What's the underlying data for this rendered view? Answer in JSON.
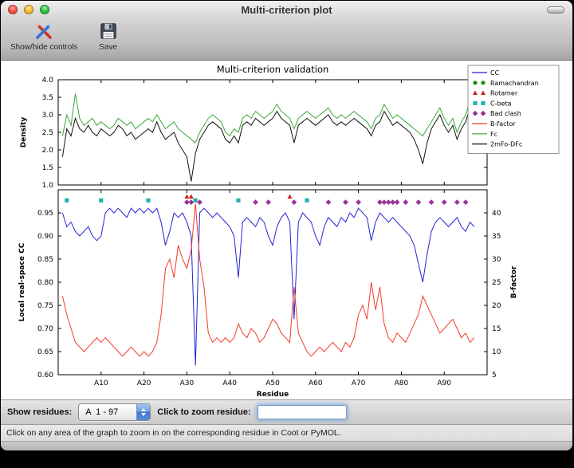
{
  "window": {
    "title": "Multi-criterion plot"
  },
  "toolbar": {
    "buttons": [
      {
        "label": "Show/hide controls",
        "icon": "tools-icon"
      },
      {
        "label": "Save",
        "icon": "save-icon"
      }
    ]
  },
  "controls": {
    "show_residues_label": "Show residues:",
    "residue_range_value": "A  1 - 97",
    "zoom_label": "Click to zoom residue:",
    "zoom_value": ""
  },
  "status_text": "Click on any area of the graph to zoom in on the corresponding residue in Coot or PyMOL.",
  "chart_data": {
    "type": "line",
    "title": "Multi-criterion validation",
    "xlabel": "Residue",
    "x_range": [
      0,
      100
    ],
    "residue_start": 1,
    "x_ticks": {
      "values": [
        10,
        20,
        30,
        40,
        50,
        60,
        70,
        80,
        90
      ],
      "labels": [
        "A10",
        "A20",
        "A30",
        "A40",
        "A50",
        "A60",
        "A70",
        "A80",
        "A90"
      ]
    },
    "top_plot": {
      "ylabel": "Density",
      "ylim": [
        1.0,
        4.0
      ],
      "yticks": [
        1.0,
        1.5,
        2.0,
        2.5,
        3.0,
        3.5,
        4.0
      ],
      "series": [
        {
          "name": "Fc",
          "color": "#3aa63a",
          "values": [
            2.4,
            3.0,
            2.7,
            3.6,
            2.9,
            2.7,
            2.8,
            2.9,
            2.7,
            2.8,
            2.7,
            2.6,
            2.7,
            2.9,
            2.8,
            2.7,
            2.8,
            2.6,
            2.7,
            2.8,
            2.9,
            2.8,
            3.0,
            2.8,
            2.6,
            2.7,
            2.8,
            2.6,
            2.5,
            2.4,
            2.3,
            2.2,
            2.5,
            2.7,
            2.9,
            3.0,
            2.9,
            2.8,
            2.5,
            2.4,
            2.6,
            2.5,
            2.9,
            3.0,
            2.9,
            3.1,
            3.0,
            2.9,
            3.0,
            3.1,
            3.3,
            3.1,
            3.0,
            2.9,
            2.6,
            2.9,
            3.0,
            3.1,
            3.0,
            2.9,
            3.0,
            3.1,
            3.2,
            3.0,
            2.9,
            3.0,
            2.9,
            3.0,
            3.1,
            3.0,
            2.9,
            2.8,
            2.6,
            2.9,
            3.0,
            3.3,
            3.1,
            2.9,
            3.0,
            2.9,
            2.8,
            2.7,
            2.6,
            2.5,
            2.4,
            2.6,
            2.8,
            3.0,
            3.2,
            2.9,
            2.7,
            2.9,
            2.5,
            2.8,
            3.0,
            3.4,
            3.2
          ]
        },
        {
          "name": "2mFo-DFc",
          "color": "#111111",
          "values": [
            1.8,
            2.6,
            2.4,
            2.9,
            2.6,
            2.5,
            2.7,
            2.5,
            2.4,
            2.6,
            2.5,
            2.4,
            2.5,
            2.7,
            2.6,
            2.4,
            2.5,
            2.3,
            2.4,
            2.5,
            2.6,
            2.5,
            2.8,
            2.5,
            2.3,
            2.4,
            2.5,
            2.2,
            2.0,
            1.8,
            1.1,
            1.9,
            2.3,
            2.5,
            2.7,
            2.8,
            2.7,
            2.6,
            2.3,
            2.2,
            2.4,
            2.2,
            2.7,
            2.8,
            2.7,
            2.9,
            2.8,
            2.7,
            2.8,
            2.9,
            3.1,
            2.9,
            2.8,
            2.7,
            2.2,
            2.7,
            2.8,
            2.9,
            2.8,
            2.7,
            2.8,
            2.9,
            3.0,
            2.8,
            2.7,
            2.8,
            2.7,
            2.8,
            2.9,
            2.8,
            2.7,
            2.6,
            2.4,
            2.7,
            2.8,
            3.1,
            2.9,
            2.7,
            2.8,
            2.7,
            2.6,
            2.5,
            2.3,
            2.0,
            1.6,
            2.2,
            2.6,
            2.8,
            3.0,
            2.7,
            2.5,
            2.7,
            2.3,
            2.6,
            2.8,
            3.2,
            3.0
          ]
        }
      ]
    },
    "bottom_plot": {
      "ylabel_left": "Local real-space CC",
      "ylabel_right": "B-factor",
      "ylim_left": [
        0.6,
        1.0
      ],
      "yticks_left": [
        0.6,
        0.65,
        0.7,
        0.75,
        0.8,
        0.85,
        0.9,
        0.95
      ],
      "ylim_right": [
        5,
        45
      ],
      "yticks_right": [
        5,
        10,
        15,
        20,
        25,
        30,
        35,
        40
      ],
      "series": [
        {
          "name": "CC",
          "axis": "left",
          "color": "#2323d6",
          "values": [
            0.95,
            0.92,
            0.93,
            0.91,
            0.9,
            0.91,
            0.92,
            0.9,
            0.89,
            0.9,
            0.95,
            0.96,
            0.95,
            0.96,
            0.95,
            0.94,
            0.96,
            0.95,
            0.96,
            0.95,
            0.96,
            0.95,
            0.96,
            0.93,
            0.88,
            0.91,
            0.95,
            0.94,
            0.95,
            0.93,
            0.9,
            0.62,
            0.95,
            0.96,
            0.95,
            0.94,
            0.95,
            0.94,
            0.93,
            0.92,
            0.9,
            0.81,
            0.93,
            0.94,
            0.93,
            0.92,
            0.94,
            0.93,
            0.9,
            0.88,
            0.92,
            0.94,
            0.95,
            0.93,
            0.72,
            0.93,
            0.95,
            0.94,
            0.93,
            0.9,
            0.88,
            0.92,
            0.94,
            0.93,
            0.92,
            0.94,
            0.93,
            0.95,
            0.94,
            0.96,
            0.95,
            0.94,
            0.89,
            0.93,
            0.95,
            0.94,
            0.93,
            0.94,
            0.93,
            0.92,
            0.91,
            0.9,
            0.88,
            0.84,
            0.8,
            0.86,
            0.91,
            0.93,
            0.94,
            0.93,
            0.92,
            0.93,
            0.94,
            0.92,
            0.91,
            0.93,
            0.92
          ]
        },
        {
          "name": "B-factor",
          "axis": "right",
          "color": "#f23b2a",
          "values": [
            22,
            18,
            15,
            12,
            11,
            10,
            11,
            12,
            13,
            12,
            13,
            12,
            11,
            10,
            9,
            10,
            11,
            10,
            9,
            10,
            9,
            10,
            12,
            18,
            28,
            30,
            26,
            33,
            30,
            28,
            32,
            42,
            30,
            24,
            14,
            12,
            13,
            12,
            13,
            12,
            13,
            16,
            14,
            13,
            15,
            14,
            12,
            13,
            15,
            17,
            16,
            14,
            13,
            12,
            24,
            14,
            12,
            10,
            9,
            10,
            11,
            10,
            11,
            12,
            11,
            10,
            12,
            11,
            13,
            18,
            20,
            17,
            25,
            19,
            24,
            16,
            13,
            12,
            14,
            13,
            12,
            14,
            16,
            18,
            22,
            20,
            18,
            16,
            14,
            15,
            16,
            17,
            15,
            13,
            14,
            12,
            13
          ]
        }
      ],
      "markers": [
        {
          "name": "Ramachandran",
          "shape": "circle",
          "color": "#1f8c1f",
          "y": 0.99,
          "residues": []
        },
        {
          "name": "Rotamer",
          "shape": "triangle",
          "color": "#cc2222",
          "y": 0.985,
          "residues": [
            30,
            31,
            54
          ]
        },
        {
          "name": "C-beta",
          "shape": "square",
          "color": "#27b3ab",
          "y": 0.977,
          "residues": [
            2,
            10,
            21,
            32,
            42,
            58
          ]
        },
        {
          "name": "Bad clash",
          "shape": "diamond",
          "color": "#993399",
          "y": 0.973,
          "residues": [
            30,
            31,
            33,
            46,
            49,
            55,
            63,
            67,
            70,
            75,
            76,
            77,
            78,
            79,
            81,
            84,
            87,
            90,
            93,
            95
          ]
        }
      ]
    },
    "legend": [
      {
        "label": "CC",
        "glyph": "line",
        "color": "#2323d6"
      },
      {
        "label": "Ramachandran",
        "glyph": "circle",
        "color": "#1f8c1f"
      },
      {
        "label": "Rotamer",
        "glyph": "triangle",
        "color": "#cc2222"
      },
      {
        "label": "C-beta",
        "glyph": "square",
        "color": "#27b3ab"
      },
      {
        "label": "Bad clash",
        "glyph": "diamond",
        "color": "#993399"
      },
      {
        "label": "B-factor",
        "glyph": "line",
        "color": "#f23b2a"
      },
      {
        "label": "Fc",
        "glyph": "line",
        "color": "#3aa63a"
      },
      {
        "label": "2mFo-DFc",
        "glyph": "line",
        "color": "#111111"
      }
    ]
  }
}
